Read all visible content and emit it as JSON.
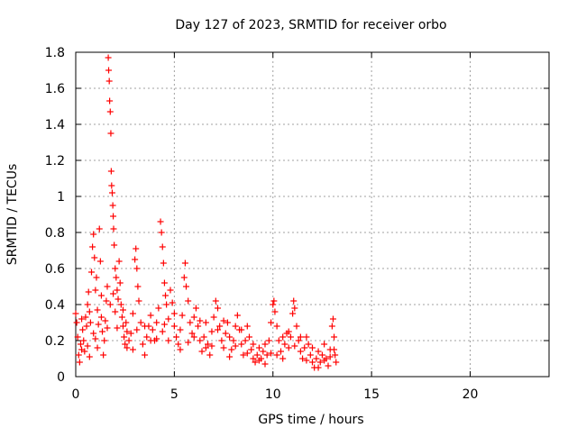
{
  "chart_data": {
    "type": "scatter",
    "title": "Day 127 of 2023, SRMTID for receiver orbo",
    "xlabel": "GPS time / hours",
    "ylabel": "SRMTID / TECUs",
    "xlim": [
      0,
      24
    ],
    "ylim": [
      0,
      1.8
    ],
    "xticks": [
      0,
      5,
      10,
      15,
      20
    ],
    "xtick_labels": [
      "0",
      "5",
      "10",
      "15",
      "20"
    ],
    "yticks": [
      0,
      0.2,
      0.4,
      0.6,
      0.8,
      1,
      1.2,
      1.4,
      1.6,
      1.8
    ],
    "ytick_labels": [
      "0",
      "0.2",
      "0.4",
      "0.6",
      "0.8",
      "1",
      "1.2",
      "1.4",
      "1.6",
      "1.8"
    ],
    "grid": true,
    "marker": "plus",
    "color": "#ff0000",
    "series": [
      {
        "name": "SRMTID",
        "points": [
          [
            0.0,
            0.35
          ],
          [
            0.05,
            0.3
          ],
          [
            0.1,
            0.22
          ],
          [
            0.15,
            0.12
          ],
          [
            0.2,
            0.08
          ],
          [
            0.25,
            0.18
          ],
          [
            0.3,
            0.15
          ],
          [
            0.35,
            0.26
          ],
          [
            0.4,
            0.2
          ],
          [
            0.45,
            0.14
          ],
          [
            0.5,
            0.33
          ],
          [
            0.55,
            0.28
          ],
          [
            0.6,
            0.4
          ],
          [
            0.65,
            0.47
          ],
          [
            0.7,
            0.36
          ],
          [
            0.75,
            0.3
          ],
          [
            0.8,
            0.58
          ],
          [
            0.85,
            0.72
          ],
          [
            0.9,
            0.79
          ],
          [
            0.95,
            0.66
          ],
          [
            1.0,
            0.48
          ],
          [
            1.05,
            0.55
          ],
          [
            1.1,
            0.37
          ],
          [
            1.15,
            0.29
          ],
          [
            1.2,
            0.82
          ],
          [
            1.25,
            0.64
          ],
          [
            1.3,
            0.45
          ],
          [
            1.35,
            0.25
          ],
          [
            1.4,
            0.12
          ],
          [
            1.45,
            0.2
          ],
          [
            1.5,
            0.31
          ],
          [
            1.55,
            0.42
          ],
          [
            1.6,
            0.5
          ],
          [
            1.65,
            1.77
          ],
          [
            1.67,
            1.7
          ],
          [
            1.7,
            1.64
          ],
          [
            1.72,
            1.53
          ],
          [
            1.75,
            1.47
          ],
          [
            1.78,
            1.35
          ],
          [
            1.8,
            1.14
          ],
          [
            1.82,
            1.06
          ],
          [
            1.85,
            1.02
          ],
          [
            1.88,
            0.95
          ],
          [
            1.9,
            0.89
          ],
          [
            1.92,
            0.82
          ],
          [
            1.95,
            0.73
          ],
          [
            2.0,
            0.6
          ],
          [
            2.05,
            0.55
          ],
          [
            2.1,
            0.48
          ],
          [
            2.15,
            0.43
          ],
          [
            2.2,
            0.64
          ],
          [
            2.25,
            0.52
          ],
          [
            2.3,
            0.4
          ],
          [
            2.35,
            0.33
          ],
          [
            2.4,
            0.28
          ],
          [
            2.45,
            0.22
          ],
          [
            2.5,
            0.18
          ],
          [
            2.55,
            0.3
          ],
          [
            2.6,
            0.25
          ],
          [
            2.7,
            0.2
          ],
          [
            2.8,
            0.24
          ],
          [
            2.9,
            0.35
          ],
          [
            3.0,
            0.65
          ],
          [
            3.05,
            0.71
          ],
          [
            3.1,
            0.6
          ],
          [
            3.15,
            0.5
          ],
          [
            3.2,
            0.42
          ],
          [
            3.3,
            0.3
          ],
          [
            3.4,
            0.18
          ],
          [
            3.5,
            0.12
          ],
          [
            3.6,
            0.22
          ],
          [
            3.7,
            0.28
          ],
          [
            3.8,
            0.34
          ],
          [
            3.9,
            0.26
          ],
          [
            4.0,
            0.2
          ],
          [
            4.1,
            0.3
          ],
          [
            4.2,
            0.38
          ],
          [
            4.3,
            0.86
          ],
          [
            4.35,
            0.8
          ],
          [
            4.4,
            0.72
          ],
          [
            4.45,
            0.63
          ],
          [
            4.5,
            0.52
          ],
          [
            4.55,
            0.45
          ],
          [
            4.6,
            0.4
          ],
          [
            4.7,
            0.32
          ],
          [
            4.8,
            0.48
          ],
          [
            4.9,
            0.41
          ],
          [
            5.0,
            0.28
          ],
          [
            5.1,
            0.22
          ],
          [
            5.2,
            0.18
          ],
          [
            5.3,
            0.26
          ],
          [
            5.4,
            0.34
          ],
          [
            5.5,
            0.55
          ],
          [
            5.55,
            0.63
          ],
          [
            5.6,
            0.5
          ],
          [
            5.7,
            0.42
          ],
          [
            5.8,
            0.3
          ],
          [
            5.9,
            0.24
          ],
          [
            6.0,
            0.33
          ],
          [
            6.1,
            0.38
          ],
          [
            6.2,
            0.28
          ],
          [
            6.3,
            0.2
          ],
          [
            6.4,
            0.14
          ],
          [
            6.5,
            0.22
          ],
          [
            6.6,
            0.3
          ],
          [
            6.7,
            0.18
          ],
          [
            6.8,
            0.12
          ],
          [
            6.9,
            0.25
          ],
          [
            7.0,
            0.33
          ],
          [
            7.1,
            0.42
          ],
          [
            7.2,
            0.38
          ],
          [
            7.3,
            0.28
          ],
          [
            7.4,
            0.2
          ],
          [
            7.5,
            0.16
          ],
          [
            7.6,
            0.24
          ],
          [
            7.7,
            0.3
          ],
          [
            7.8,
            0.22
          ],
          [
            7.9,
            0.15
          ],
          [
            8.0,
            0.2
          ],
          [
            8.1,
            0.28
          ],
          [
            8.2,
            0.34
          ],
          [
            8.3,
            0.26
          ],
          [
            8.4,
            0.18
          ],
          [
            8.5,
            0.12
          ],
          [
            8.6,
            0.2
          ],
          [
            8.7,
            0.28
          ],
          [
            8.8,
            0.22
          ],
          [
            8.9,
            0.15
          ],
          [
            9.0,
            0.1
          ],
          [
            9.1,
            0.08
          ],
          [
            9.2,
            0.12
          ],
          [
            9.3,
            0.16
          ],
          [
            9.4,
            0.1
          ],
          [
            9.5,
            0.14
          ],
          [
            9.6,
            0.18
          ],
          [
            9.7,
            0.12
          ],
          [
            9.8,
            0.2
          ],
          [
            9.9,
            0.3
          ],
          [
            10.0,
            0.4
          ],
          [
            10.05,
            0.42
          ],
          [
            10.1,
            0.36
          ],
          [
            10.2,
            0.28
          ],
          [
            10.3,
            0.2
          ],
          [
            10.4,
            0.14
          ],
          [
            10.5,
            0.1
          ],
          [
            10.6,
            0.18
          ],
          [
            10.7,
            0.24
          ],
          [
            10.8,
            0.16
          ],
          [
            10.9,
            0.22
          ],
          [
            11.0,
            0.35
          ],
          [
            11.05,
            0.42
          ],
          [
            11.1,
            0.38
          ],
          [
            11.2,
            0.28
          ],
          [
            11.3,
            0.2
          ],
          [
            11.4,
            0.14
          ],
          [
            11.5,
            0.1
          ],
          [
            11.6,
            0.16
          ],
          [
            11.7,
            0.22
          ],
          [
            11.8,
            0.18
          ],
          [
            11.9,
            0.12
          ],
          [
            12.0,
            0.08
          ],
          [
            12.1,
            0.05
          ],
          [
            12.2,
            0.1
          ],
          [
            12.3,
            0.14
          ],
          [
            12.4,
            0.08
          ],
          [
            12.5,
            0.12
          ],
          [
            12.6,
            0.18
          ],
          [
            12.7,
            0.1
          ],
          [
            12.8,
            0.06
          ],
          [
            12.9,
            0.15
          ],
          [
            13.0,
            0.28
          ],
          [
            13.05,
            0.32
          ],
          [
            13.1,
            0.22
          ],
          [
            13.15,
            0.12
          ],
          [
            13.2,
            0.08
          ],
          [
            0.3,
            0.32
          ],
          [
            0.6,
            0.17
          ],
          [
            0.9,
            0.24
          ],
          [
            1.1,
            0.16
          ],
          [
            1.3,
            0.33
          ],
          [
            1.6,
            0.27
          ],
          [
            2.1,
            0.27
          ],
          [
            2.4,
            0.37
          ],
          [
            2.6,
            0.16
          ],
          [
            2.9,
            0.15
          ],
          [
            3.1,
            0.26
          ],
          [
            3.5,
            0.28
          ],
          [
            3.8,
            0.2
          ],
          [
            4.1,
            0.21
          ],
          [
            4.4,
            0.25
          ],
          [
            4.7,
            0.2
          ],
          [
            5.0,
            0.35
          ],
          [
            5.3,
            0.15
          ],
          [
            5.7,
            0.19
          ],
          [
            6.0,
            0.22
          ],
          [
            6.3,
            0.31
          ],
          [
            6.6,
            0.16
          ],
          [
            6.9,
            0.17
          ],
          [
            7.2,
            0.26
          ],
          [
            7.5,
            0.31
          ],
          [
            7.8,
            0.11
          ],
          [
            8.1,
            0.17
          ],
          [
            8.4,
            0.26
          ],
          [
            8.7,
            0.13
          ],
          [
            9.0,
            0.18
          ],
          [
            9.3,
            0.09
          ],
          [
            9.6,
            0.07
          ],
          [
            9.9,
            0.13
          ],
          [
            10.2,
            0.12
          ],
          [
            10.5,
            0.22
          ],
          [
            10.8,
            0.25
          ],
          [
            11.1,
            0.17
          ],
          [
            11.4,
            0.22
          ],
          [
            11.7,
            0.09
          ],
          [
            12.0,
            0.16
          ],
          [
            12.3,
            0.05
          ],
          [
            12.6,
            0.09
          ],
          [
            12.9,
            0.11
          ],
          [
            13.1,
            0.15
          ],
          [
            1.75,
            0.4
          ],
          [
            1.9,
            0.46
          ],
          [
            2.0,
            0.36
          ],
          [
            0.7,
            0.11
          ],
          [
            1.0,
            0.21
          ],
          [
            4.5,
            0.29
          ]
        ]
      }
    ]
  }
}
